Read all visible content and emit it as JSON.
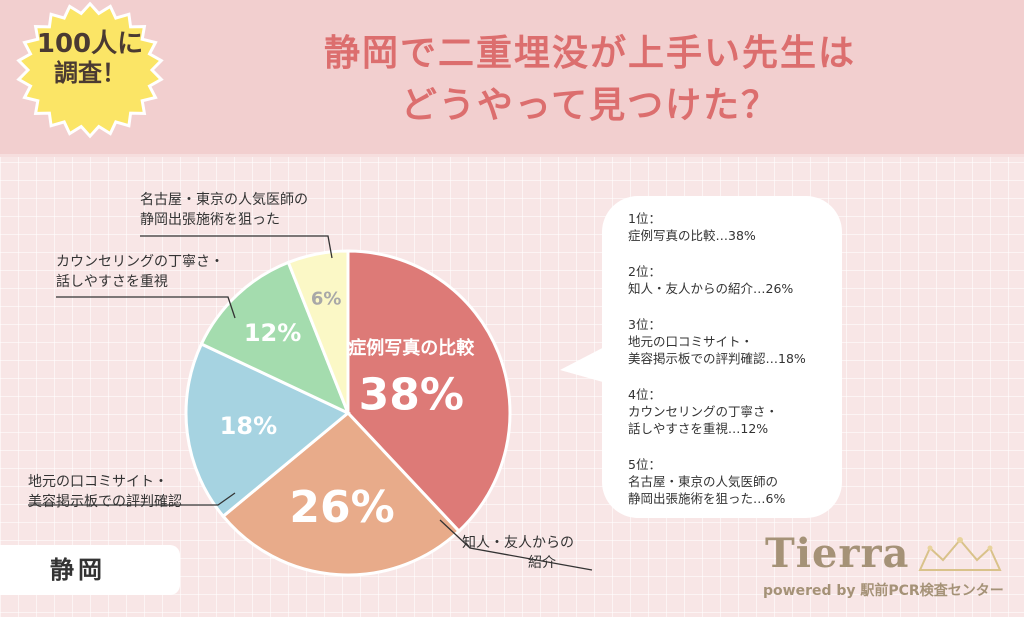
{
  "header": {
    "badge_line1": "100人に",
    "badge_line2": "調査！",
    "title_line1": "静岡で二重埋没が上手い先生は",
    "title_line2": "どうやって見つけた？"
  },
  "chart_data": {
    "type": "pie",
    "title": "静岡で二重埋没が上手い先生はどうやって見つけた？",
    "slices": [
      {
        "label": "症例写真の比較",
        "value": 38,
        "pct_label": "38%",
        "color": "#dd7a77"
      },
      {
        "label": "知人・友人からの紹介",
        "value": 26,
        "pct_label": "26%",
        "color": "#e8ab8a"
      },
      {
        "label": "地元の口コミサイト・美容掲示板での評判確認",
        "value": 18,
        "pct_label": "18%",
        "color": "#a6d3e1"
      },
      {
        "label": "カウンセリングの丁寧さ・話しやすさを重視",
        "value": 12,
        "pct_label": "12%",
        "color": "#a4dcae"
      },
      {
        "label": "名古屋・東京の人気医師の静岡出張施術を狙った",
        "value": 6,
        "pct_label": "6%",
        "color": "#fbf8c6"
      }
    ]
  },
  "labels": {
    "s2_l1": "知人・友人からの",
    "s2_l2": "紹介",
    "s3_l1": "地元の口コミサイト・",
    "s3_l2": "美容掲示板での評判確認",
    "s4_l1": "カウンセリングの丁寧さ・",
    "s4_l2": "話しやすさを重視",
    "s5_l1": "名古屋・東京の人気医師の",
    "s5_l2": "静岡出張施術を狙った"
  },
  "ranking": [
    {
      "rank": "1位：",
      "line1": "症例写真の比較…38%",
      "line2": ""
    },
    {
      "rank": "2位：",
      "line1": "知人・友人からの紹介…26%",
      "line2": ""
    },
    {
      "rank": "3位：",
      "line1": "地元の口コミサイト・",
      "line2": "美容掲示板での評判確認…18%"
    },
    {
      "rank": "4位：",
      "line1": "カウンセリングの丁寧さ・",
      "line2": "話しやすさを重視…12%"
    },
    {
      "rank": "5位：",
      "line1": "名古屋・東京の人気医師の",
      "line2": "静岡出張施術を狙った…6%"
    }
  ],
  "region": "静岡",
  "logo": {
    "name": "Tierra",
    "sub": "powered by 駅前PCR検査センター"
  }
}
